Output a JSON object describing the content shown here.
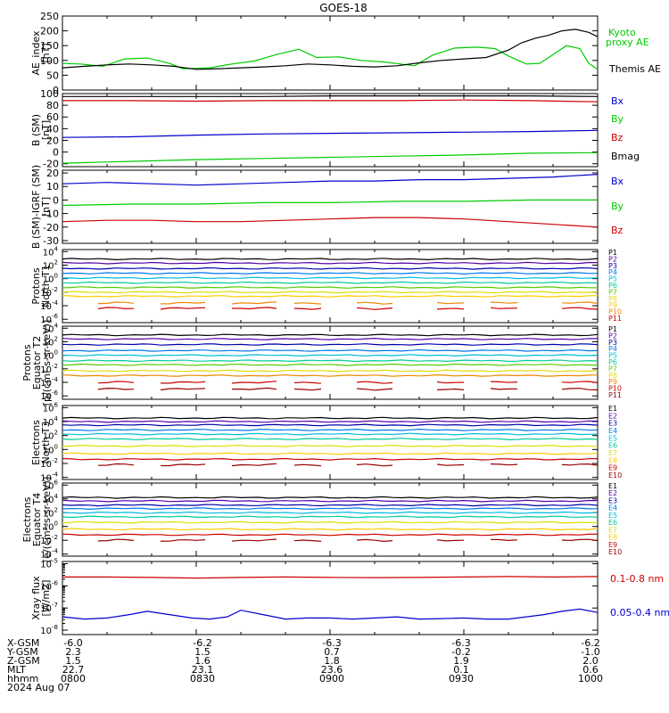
{
  "title": "GOES-18",
  "colors": {
    "black": "#000000",
    "green": "#00cc00",
    "blue": "#0000cc",
    "red": "#cc0000",
    "navy": "#0000aa",
    "indigo": "#5500aa",
    "sky": "#0077ee",
    "cyan": "#00bbdd",
    "aqua": "#00ddcc",
    "teal": "#00cc99",
    "lime": "#55cc00",
    "yellow": "#dddd00",
    "gold": "#ffcc00",
    "orange": "#ee8800",
    "orangered": "#dd4400",
    "crimson": "#cc0000",
    "maroon": "#990000"
  },
  "footer": {
    "labels": [
      "X-GSM",
      "Y-GSM",
      "Z-GSM",
      "MLT",
      "hhmm",
      "2024 Aug 07"
    ],
    "columns": [
      {
        "x_gsm": "-6.0",
        "y_gsm": "2.3",
        "z_gsm": "1.5",
        "mlt": "22.7",
        "hhmm": "0800"
      },
      {
        "x_gsm": "-6.2",
        "y_gsm": "1.5",
        "z_gsm": "1.6",
        "mlt": "23.1",
        "hhmm": "0830"
      },
      {
        "x_gsm": "-6.3",
        "y_gsm": "0.7",
        "z_gsm": "1.8",
        "mlt": "23.6",
        "hhmm": "0900"
      },
      {
        "x_gsm": "-6.3",
        "y_gsm": "-0.2",
        "z_gsm": "1.9",
        "mlt": "0.1",
        "hhmm": "0930"
      },
      {
        "x_gsm": "-6.2",
        "y_gsm": "-1.0",
        "z_gsm": "2.0",
        "mlt": "0.6",
        "hhmm": "1000"
      }
    ]
  },
  "chart_data": [
    {
      "type": "line",
      "panel": "ae",
      "ylabel": [
        "AE_index",
        "[nT]"
      ],
      "ylim": [
        0,
        250
      ],
      "yscale": "linear",
      "yticks": [
        0,
        50,
        100,
        150,
        200,
        250
      ],
      "xlim": [
        0,
        120
      ],
      "series": [
        {
          "name": "Kyoto",
          "name2": "proxy AE",
          "color": "green",
          "x": [
            0,
            4,
            9,
            14,
            19,
            24,
            27,
            33,
            38,
            43,
            48,
            53,
            57,
            62,
            67,
            72,
            79,
            83,
            88,
            93,
            97,
            100,
            104,
            107,
            110,
            113,
            116,
            118,
            120
          ],
          "values": [
            90,
            88,
            80,
            105,
            108,
            90,
            72,
            75,
            88,
            98,
            120,
            138,
            110,
            112,
            100,
            95,
            82,
            118,
            142,
            145,
            140,
            115,
            88,
            90,
            120,
            150,
            140,
            90,
            70
          ]
        },
        {
          "name": "Themis AE",
          "color": "black",
          "x": [
            0,
            5,
            10,
            15,
            20,
            25,
            30,
            35,
            40,
            45,
            50,
            55,
            60,
            65,
            70,
            75,
            80,
            85,
            90,
            95,
            100,
            103,
            106,
            109,
            112,
            115,
            118,
            120
          ],
          "values": [
            75,
            80,
            85,
            88,
            85,
            80,
            70,
            72,
            75,
            78,
            82,
            88,
            85,
            80,
            78,
            82,
            92,
            100,
            105,
            110,
            135,
            160,
            175,
            185,
            200,
            205,
            195,
            180
          ]
        }
      ]
    },
    {
      "type": "line",
      "panel": "bsm",
      "ylabel": [
        "B (SM)",
        "[nT]"
      ],
      "ylim": [
        -25,
        100
      ],
      "yscale": "linear",
      "yticks": [
        -20,
        0,
        20,
        40,
        60,
        80,
        100
      ],
      "xlim": [
        0,
        120
      ],
      "series": [
        {
          "name": "Bx",
          "color": "blue",
          "x": [
            0,
            15,
            30,
            45,
            60,
            75,
            90,
            105,
            120
          ],
          "values": [
            25,
            26,
            29,
            31,
            32,
            33,
            34,
            35,
            37
          ]
        },
        {
          "name": "By",
          "color": "green",
          "x": [
            0,
            15,
            30,
            45,
            60,
            75,
            90,
            105,
            120
          ],
          "values": [
            -19,
            -16,
            -13,
            -11,
            -9,
            -7,
            -5,
            -2,
            -1
          ]
        },
        {
          "name": "Bz",
          "color": "red",
          "x": [
            0,
            15,
            30,
            45,
            60,
            75,
            90,
            105,
            120
          ],
          "values": [
            88,
            88,
            87,
            88,
            88,
            88,
            89,
            88,
            86
          ]
        },
        {
          "name": "Bmag",
          "color": "black",
          "x": [
            0,
            15,
            30,
            45,
            60,
            75,
            90,
            105,
            120
          ],
          "values": [
            95,
            95,
            95,
            95,
            96,
            96,
            96,
            96,
            95
          ]
        }
      ]
    },
    {
      "type": "line",
      "panel": "bdiff",
      "ylabel": [
        "B (SM)-IGRF (SM)",
        "[nT]"
      ],
      "ylim": [
        -32,
        22
      ],
      "yscale": "linear",
      "yticks": [
        -30,
        -20,
        -10,
        0,
        10,
        20
      ],
      "xlim": [
        0,
        120
      ],
      "series": [
        {
          "name": "Bx",
          "color": "blue",
          "x": [
            0,
            10,
            20,
            30,
            40,
            50,
            60,
            70,
            80,
            90,
            100,
            110,
            120
          ],
          "values": [
            12,
            13,
            12,
            11,
            12,
            13,
            14,
            14,
            15,
            15,
            16,
            17,
            19
          ]
        },
        {
          "name": "By",
          "color": "green",
          "x": [
            0,
            15,
            30,
            45,
            60,
            75,
            90,
            105,
            120
          ],
          "values": [
            -4,
            -3,
            -3,
            -2,
            -2,
            -1,
            -1,
            0,
            0
          ]
        },
        {
          "name": "Bz",
          "color": "red",
          "x": [
            0,
            10,
            20,
            30,
            40,
            50,
            60,
            70,
            80,
            90,
            100,
            110,
            120
          ],
          "values": [
            -16,
            -15,
            -15,
            -16,
            -16,
            -15,
            -14,
            -13,
            -13,
            -14,
            -16,
            -18,
            -20
          ]
        }
      ]
    },
    {
      "type": "line",
      "panel": "protons_t1",
      "ylabel": [
        "Protons",
        "North T1"
      ],
      "ylim": [
        -6.5,
        4.3
      ],
      "yscale": "log",
      "yticks": [
        -6,
        -4,
        -2,
        0,
        2,
        4
      ],
      "xlim": [
        0,
        120
      ],
      "series": [
        {
          "name": "P1",
          "color": "black",
          "level": 2.9
        },
        {
          "name": "P2",
          "color": "indigo",
          "level": 2.3
        },
        {
          "name": "P3",
          "color": "navy",
          "level": 1.5
        },
        {
          "name": "P4",
          "color": "sky",
          "level": 0.8
        },
        {
          "name": "P5",
          "color": "cyan",
          "level": 0.1
        },
        {
          "name": "P6",
          "color": "teal",
          "level": -0.6
        },
        {
          "name": "P7",
          "color": "lime",
          "level": -1.3
        },
        {
          "name": "P8",
          "color": "yellow",
          "level": -2.0
        },
        {
          "name": "P9",
          "color": "gold",
          "level": -2.6
        },
        {
          "name": "P10",
          "color": "orange",
          "level": -3.6
        },
        {
          "name": "P11",
          "color": "red",
          "level": -4.4
        }
      ]
    },
    {
      "type": "line",
      "panel": "protons_t2",
      "ylabel": [
        "Protons",
        "Equator T2",
        "[p/(cm²-s-sr-keV)]"
      ],
      "ylim": [
        -6.5,
        4.3
      ],
      "yscale": "log",
      "yticks": [
        -6,
        -4,
        -2,
        0,
        2,
        4
      ],
      "xlim": [
        0,
        120
      ],
      "series": [
        {
          "name": "P1",
          "color": "black",
          "level": 3.0
        },
        {
          "name": "P2",
          "color": "indigo",
          "level": 2.4
        },
        {
          "name": "P3",
          "color": "navy",
          "level": 1.6
        },
        {
          "name": "P4",
          "color": "sky",
          "level": 0.7
        },
        {
          "name": "P5",
          "color": "cyan",
          "level": 0.0
        },
        {
          "name": "P6",
          "color": "teal",
          "level": -0.8
        },
        {
          "name": "P7",
          "color": "lime",
          "level": -1.4
        },
        {
          "name": "P8",
          "color": "yellow",
          "level": -2.3
        },
        {
          "name": "P9",
          "color": "orange",
          "level": -3.0
        },
        {
          "name": "P10",
          "color": "red",
          "level": -4.0
        },
        {
          "name": "P11",
          "color": "maroon",
          "level": -5.0
        }
      ]
    },
    {
      "type": "line",
      "panel": "electrons_t3",
      "ylabel": [
        "Electrons",
        "North T3"
      ],
      "ylim": [
        -4.3,
        6.3
      ],
      "yscale": "log",
      "yticks": [
        -4,
        -2,
        0,
        2,
        4,
        6
      ],
      "xlim": [
        0,
        120
      ],
      "series": [
        {
          "name": "E1",
          "color": "black",
          "level": 4.5
        },
        {
          "name": "E2",
          "color": "indigo",
          "level": 4.0
        },
        {
          "name": "E3",
          "color": "navy",
          "level": 3.5
        },
        {
          "name": "E4",
          "color": "sky",
          "level": 2.8
        },
        {
          "name": "E5",
          "color": "cyan",
          "level": 2.2
        },
        {
          "name": "E6",
          "color": "teal",
          "level": 1.5
        },
        {
          "name": "E7",
          "color": "yellow",
          "level": 0.5
        },
        {
          "name": "E8",
          "color": "gold",
          "level": -0.6
        },
        {
          "name": "E9",
          "color": "red",
          "level": -1.4
        },
        {
          "name": "E10",
          "color": "maroon",
          "level": -2.2
        }
      ]
    },
    {
      "type": "line",
      "panel": "electrons_t4",
      "ylabel": [
        "Electrons",
        "Equator T4",
        "[e/(cm²-s-sr-keV)]"
      ],
      "ylim": [
        -4.3,
        6.3
      ],
      "yscale": "log",
      "yticks": [
        -4,
        -2,
        0,
        2,
        4,
        6
      ],
      "xlim": [
        0,
        120
      ],
      "series": [
        {
          "name": "E1",
          "color": "black",
          "level": 4.2
        },
        {
          "name": "E2",
          "color": "indigo",
          "level": 3.7
        },
        {
          "name": "E3",
          "color": "navy",
          "level": 3.1
        },
        {
          "name": "E4",
          "color": "sky",
          "level": 2.6
        },
        {
          "name": "E5",
          "color": "cyan",
          "level": 2.0
        },
        {
          "name": "E6",
          "color": "teal",
          "level": 1.4
        },
        {
          "name": "E7",
          "color": "yellow",
          "level": 0.6
        },
        {
          "name": "E8",
          "color": "gold",
          "level": -0.4
        },
        {
          "name": "E9",
          "color": "red",
          "level": -1.2
        },
        {
          "name": "E10",
          "color": "maroon",
          "level": -2.0
        }
      ]
    },
    {
      "type": "line",
      "panel": "xray",
      "ylabel": [
        "Xray flux",
        "[W/m2]"
      ],
      "ylim": [
        -8.2,
        -4.9
      ],
      "yscale": "log",
      "yticks": [
        -8,
        -7,
        -6,
        -5
      ],
      "xlim": [
        0,
        120
      ],
      "series": [
        {
          "name": "0.1-0.8 nm",
          "color": "red",
          "x": [
            0,
            10,
            20,
            30,
            40,
            50,
            60,
            70,
            80,
            90,
            100,
            110,
            120
          ],
          "values": [
            -5.6,
            -5.6,
            -5.62,
            -5.65,
            -5.62,
            -5.6,
            -5.62,
            -5.63,
            -5.62,
            -5.6,
            -5.58,
            -5.6,
            -5.58
          ]
        },
        {
          "name": "0.05-0.4 nm",
          "color": "blue",
          "x": [
            0,
            5,
            10,
            15,
            19,
            24,
            29,
            33,
            37,
            40,
            45,
            50,
            55,
            60,
            65,
            70,
            75,
            80,
            85,
            90,
            95,
            100,
            104,
            108,
            112,
            116,
            120
          ],
          "values": [
            -7.4,
            -7.5,
            -7.45,
            -7.3,
            -7.15,
            -7.3,
            -7.45,
            -7.5,
            -7.4,
            -7.1,
            -7.3,
            -7.5,
            -7.45,
            -7.45,
            -7.5,
            -7.45,
            -7.4,
            -7.5,
            -7.48,
            -7.45,
            -7.5,
            -7.5,
            -7.4,
            -7.3,
            -7.15,
            -7.05,
            -7.2
          ]
        }
      ]
    }
  ]
}
